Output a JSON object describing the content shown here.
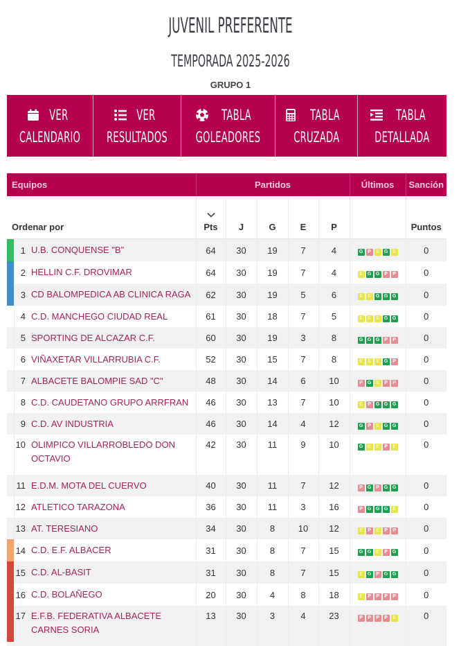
{
  "header": {
    "title": "JUVENIL PREFERENTE",
    "season": "TEMPORADA 2025-2026",
    "group": "GRUPO 1"
  },
  "colors": {
    "brand": "#b5004f",
    "header_text": "#f5c8dc",
    "team_link": "#a3235c",
    "win": "#1e9e4e",
    "draw": "#e3e64b",
    "loss": "#e48c92",
    "zone_champion": "#2fbf61",
    "zone_promotion": "#3e8fd0",
    "zone_warning": "#f5a46b",
    "zone_relegation": "#d9453b"
  },
  "nav": [
    {
      "icon": "calendar-icon",
      "line1": "VER",
      "line2": "CALENDARIO"
    },
    {
      "icon": "list-icon",
      "line1": "VER",
      "line2": "RESULTADOS"
    },
    {
      "icon": "soccer-ball-icon",
      "line1": "TABLA",
      "line2": "GOLEADORES"
    },
    {
      "icon": "calculator-icon",
      "line1": "TABLA",
      "line2": "CRUZADA"
    },
    {
      "icon": "detailed-list-icon",
      "line1": "TABLA",
      "line2": "DETALLADA"
    }
  ],
  "table": {
    "group_headers": {
      "teams": "Equipos",
      "matches": "Partidos",
      "last": "Últimos",
      "sanction": "Sanción"
    },
    "columns": {
      "sort_by": "Ordenar por",
      "pts": "Pts",
      "j": "J",
      "g": "G",
      "e": "E",
      "p": "P",
      "last": "",
      "points": "Puntos"
    },
    "rows": [
      {
        "pos": "1",
        "team": "U.B. CONQUENSE \"B\"",
        "pts": "64",
        "j": "30",
        "g": "19",
        "e": "7",
        "p": "4",
        "form": [
          "G",
          "P",
          "E",
          "G",
          "E"
        ],
        "sanction": "0",
        "zone": "#2fbf61"
      },
      {
        "pos": "2",
        "team": "HELLIN C.F. DROVIMAR",
        "pts": "64",
        "j": "30",
        "g": "19",
        "e": "7",
        "p": "4",
        "form": [
          "E",
          "G",
          "G",
          "P",
          "P"
        ],
        "sanction": "0",
        "zone": "#3e8fd0"
      },
      {
        "pos": "3",
        "team": "CD BALOMPEDICA AB CLINICA RAGA",
        "pts": "62",
        "j": "30",
        "g": "19",
        "e": "5",
        "p": "6",
        "form": [
          "E",
          "E",
          "G",
          "G",
          "G"
        ],
        "sanction": "0",
        "zone": "#3e8fd0"
      },
      {
        "pos": "4",
        "team": "C.D. MANCHEGO CIUDAD REAL",
        "pts": "61",
        "j": "30",
        "g": "18",
        "e": "7",
        "p": "5",
        "form": [
          "E",
          "E",
          "E",
          "G",
          "G"
        ],
        "sanction": "0",
        "zone": ""
      },
      {
        "pos": "5",
        "team": "SPORTING DE ALCAZAR C.F.",
        "pts": "60",
        "j": "30",
        "g": "19",
        "e": "3",
        "p": "8",
        "form": [
          "G",
          "G",
          "G",
          "P",
          "P"
        ],
        "sanction": "0",
        "zone": ""
      },
      {
        "pos": "6",
        "team": "VIÑAXETAR VILLARRUBIA C.F.",
        "pts": "52",
        "j": "30",
        "g": "15",
        "e": "7",
        "p": "8",
        "form": [
          "E",
          "E",
          "E",
          "G",
          "P"
        ],
        "sanction": "0",
        "zone": ""
      },
      {
        "pos": "7",
        "team": "ALBACETE BALOMPIE SAD \"C\"",
        "pts": "48",
        "j": "30",
        "g": "14",
        "e": "6",
        "p": "10",
        "form": [
          "P",
          "G",
          "E",
          "P",
          "P"
        ],
        "sanction": "0",
        "zone": ""
      },
      {
        "pos": "8",
        "team": "C.D. CAUDETANO GRUPO ARRFRAN",
        "pts": "46",
        "j": "30",
        "g": "13",
        "e": "7",
        "p": "10",
        "form": [
          "E",
          "P",
          "G",
          "G",
          "G"
        ],
        "sanction": "0",
        "zone": ""
      },
      {
        "pos": "9",
        "team": "C.D. AV INDUSTRIA",
        "pts": "46",
        "j": "30",
        "g": "14",
        "e": "4",
        "p": "12",
        "form": [
          "G",
          "P",
          "E",
          "G",
          "G"
        ],
        "sanction": "0",
        "zone": ""
      },
      {
        "pos": "10",
        "team": "OLIMPICO VILLARROBLEDO DON OCTAVIO",
        "pts": "42",
        "j": "30",
        "g": "11",
        "e": "9",
        "p": "10",
        "form": [
          "G",
          "E",
          "E",
          "P",
          "E"
        ],
        "sanction": "0",
        "zone": "",
        "tall": true
      },
      {
        "pos": "11",
        "team": "E.D.M. MOTA DEL CUERVO",
        "pts": "40",
        "j": "30",
        "g": "11",
        "e": "7",
        "p": "12",
        "form": [
          "P",
          "G",
          "P",
          "G",
          "G"
        ],
        "sanction": "0",
        "zone": ""
      },
      {
        "pos": "12",
        "team": "ATLETICO TARAZONA",
        "pts": "36",
        "j": "30",
        "g": "11",
        "e": "3",
        "p": "16",
        "form": [
          "P",
          "G",
          "G",
          "G",
          "E"
        ],
        "sanction": "0",
        "zone": ""
      },
      {
        "pos": "13",
        "team": "AT. TERESIANO",
        "pts": "34",
        "j": "30",
        "g": "8",
        "e": "10",
        "p": "12",
        "form": [
          "E",
          "P",
          "E",
          "P",
          "P"
        ],
        "sanction": "0",
        "zone": ""
      },
      {
        "pos": "14",
        "team": "C.D. E.F. ALBACER",
        "pts": "31",
        "j": "30",
        "g": "8",
        "e": "7",
        "p": "15",
        "form": [
          "G",
          "G",
          "E",
          "P",
          "G"
        ],
        "sanction": "0",
        "zone": "#f5a46b"
      },
      {
        "pos": "15",
        "team": "C.D. AL-BASIT",
        "pts": "31",
        "j": "30",
        "g": "8",
        "e": "7",
        "p": "15",
        "form": [
          "E",
          "G",
          "P",
          "G",
          "G"
        ],
        "sanction": "0",
        "zone": "#d9453b"
      },
      {
        "pos": "16",
        "team": "C.D. BOLAÑEGO",
        "pts": "20",
        "j": "30",
        "g": "4",
        "e": "8",
        "p": "18",
        "form": [
          "E",
          "P",
          "P",
          "P",
          "P"
        ],
        "sanction": "0",
        "zone": "#d9453b"
      },
      {
        "pos": "17",
        "team": "E.F.B. FEDERATIVA ALBACETE CARNES SORIA",
        "pts": "13",
        "j": "30",
        "g": "3",
        "e": "4",
        "p": "23",
        "form": [
          "P",
          "P",
          "P",
          "P",
          "E"
        ],
        "sanction": "0",
        "zone": "#d9453b",
        "tall": true
      }
    ]
  }
}
